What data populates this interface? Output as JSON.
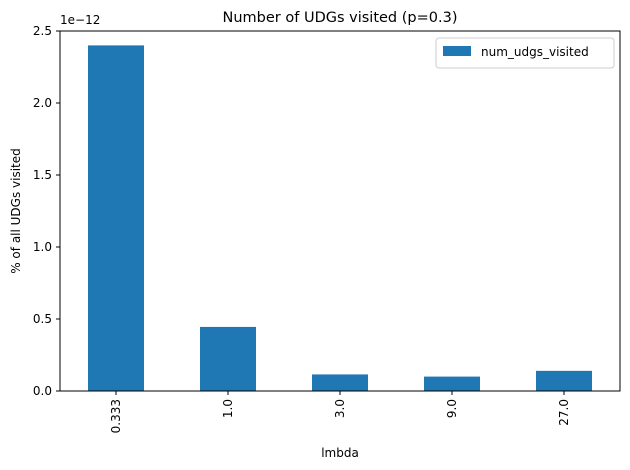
{
  "chart_data": {
    "type": "bar",
    "title": "Number of UDGs visited (p=0.3)",
    "xlabel": "lmbda",
    "ylabel": "% of all UDGs visited",
    "categories": [
      "0.333",
      "1.0",
      "3.0",
      "9.0",
      "27.0"
    ],
    "series": [
      {
        "name": "num_udgs_visited",
        "values": [
          2.4,
          0.445,
          0.115,
          0.1,
          0.14
        ]
      }
    ],
    "ylim": [
      0,
      2.5
    ],
    "yticks": [
      "0.0",
      "0.5",
      "1.0",
      "1.5",
      "2.0",
      "2.5"
    ],
    "y_offset_label": "1e−12",
    "legend_position": "upper-right",
    "grid": false,
    "bar_color": "#1f77b4"
  }
}
